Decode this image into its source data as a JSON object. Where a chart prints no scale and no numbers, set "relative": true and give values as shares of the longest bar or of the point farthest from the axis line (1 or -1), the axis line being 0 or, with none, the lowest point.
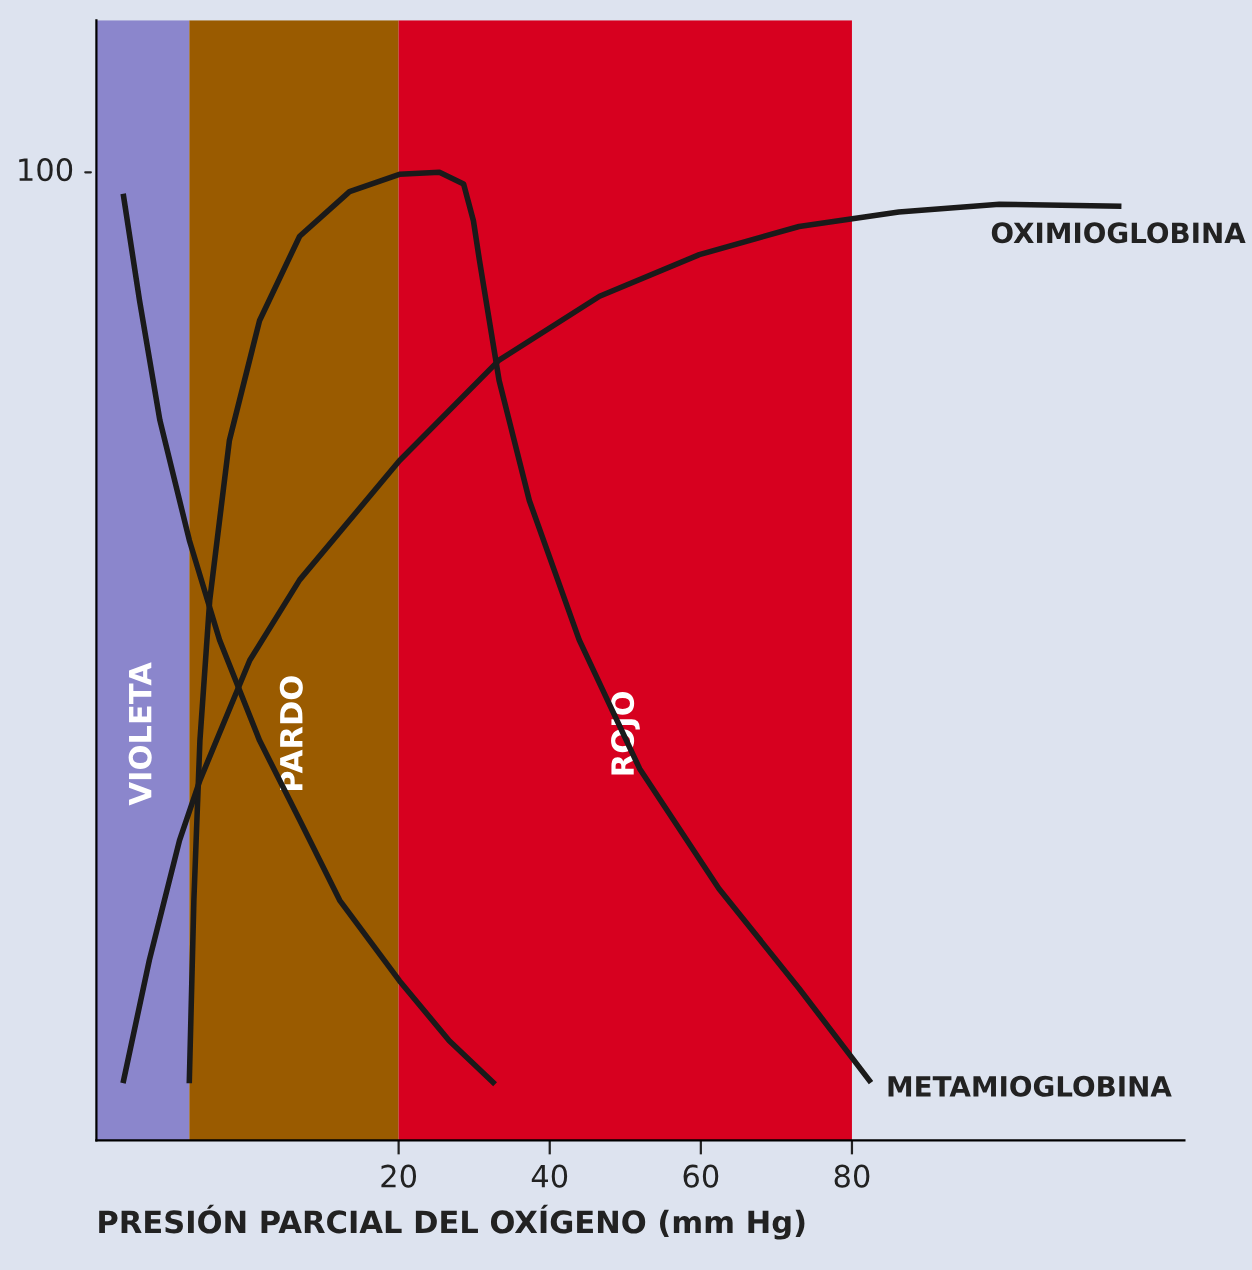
{
  "chart_data": {
    "type": "line",
    "relative": true,
    "xlabel": "PRESIÓN PARCIAL DEL OXÍGENO (mm Hg)",
    "xlim": [
      -20,
      124
    ],
    "xticks": [
      20,
      40,
      60,
      80
    ],
    "annotations": [
      "100"
    ],
    "grid": false,
    "legend": false,
    "marker": "none",
    "line_style": "solid",
    "bands": [
      {
        "axis": "x",
        "from": -20,
        "to": -7.7,
        "label": "VIOLETA",
        "color": "#8b86cc"
      },
      {
        "axis": "x",
        "from": -7.7,
        "to": 20,
        "label": "PARDO",
        "color": "#9a5b00"
      },
      {
        "axis": "x",
        "from": 20,
        "to": 80,
        "label": "ROJO",
        "color": "#d7001f"
      }
    ],
    "series": [
      {
        "color": "#1a1a1a",
        "x": [
          -16.4,
          -14.3,
          -11.6,
          -7.7,
          -3.7,
          1.6,
          6.9,
          12.2,
          20.1,
          26.7,
          32.5
        ],
        "values": [
          0.975,
          0.868,
          0.744,
          0.62,
          0.517,
          0.413,
          0.331,
          0.248,
          0.165,
          0.103,
          0.06
        ]
      },
      {
        "name": "METAMIOGLOBINA",
        "color": "#1a1a1a",
        "x": [
          -7.7,
          -7.1,
          -6.3,
          -5.0,
          -2.4,
          1.6,
          6.9,
          13.5,
          20.1,
          25.4,
          28.6,
          29.9,
          30.7,
          33.3,
          37.3,
          43.9,
          51.9,
          62.4,
          73.0,
          82.3
        ],
        "values": [
          0.062,
          0.248,
          0.413,
          0.558,
          0.723,
          0.847,
          0.934,
          0.98,
          0.998,
          1.0,
          0.988,
          0.95,
          0.909,
          0.785,
          0.661,
          0.517,
          0.384,
          0.26,
          0.157,
          0.062
        ]
      },
      {
        "name": "OXIMIOGLOBINA",
        "color": "#1a1a1a",
        "x": [
          -16.4,
          -13.0,
          -9.0,
          -6.3,
          0.3,
          6.9,
          20.1,
          33.3,
          46.6,
          59.8,
          73.0,
          86.2,
          99.5,
          115.3
        ],
        "values": [
          0.062,
          0.186,
          0.31,
          0.372,
          0.496,
          0.579,
          0.702,
          0.806,
          0.872,
          0.915,
          0.944,
          0.959,
          0.967,
          0.965
        ]
      }
    ]
  }
}
